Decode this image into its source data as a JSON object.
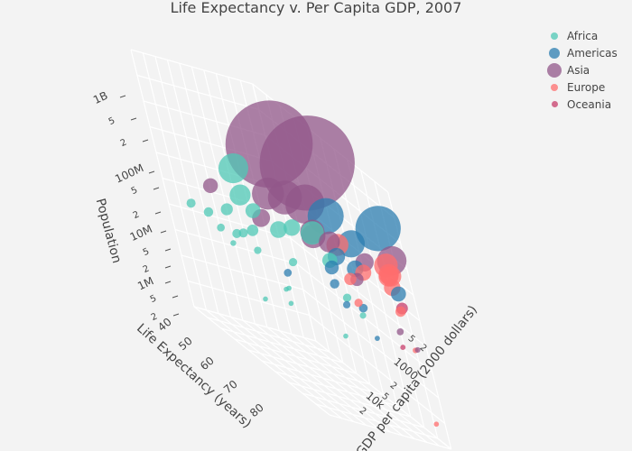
{
  "title": "Life Expectancy v. Per Capita GDP, 2007",
  "legend": [
    {
      "name": "Africa",
      "color": "#4fc8b5"
    },
    {
      "name": "Americas",
      "color": "#2c7db0"
    },
    {
      "name": "Asia",
      "color": "#915789"
    },
    {
      "name": "Europe",
      "color": "#ff6e6e"
    },
    {
      "name": "Oceania",
      "color": "#c73e6b"
    }
  ],
  "chart_data": {
    "type": "scatter",
    "subtype": "scatter3d",
    "title": "Life Expectancy v. Per Capita GDP, 2007",
    "xlabel": "Life Expectancy (years)",
    "ylabel": "GDP per capita (2000 dollars)",
    "zlabel": "Population",
    "x_ticks": [
      "40",
      "50",
      "60",
      "70",
      "80"
    ],
    "y_ticks": [
      "2",
      "5",
      "1000",
      "2",
      "5",
      "10k",
      "2"
    ],
    "z_ticks": [
      "2",
      "5",
      "1M",
      "2",
      "5",
      "10M",
      "2",
      "5",
      "100M",
      "2",
      "5",
      "1B"
    ],
    "xlim": [
      38,
      84
    ],
    "ylim_log10": [
      2.3,
      4.7
    ],
    "zlim_log10": [
      5.2,
      9.3
    ],
    "legend_position": "top-right",
    "series": [
      {
        "name": "Africa",
        "points": [
          [
            42.6,
            350,
            12000000
          ],
          [
            46.5,
            470,
            13000000
          ],
          [
            48.3,
            580,
            9000000
          ],
          [
            49.3,
            860,
            21000000
          ],
          [
            50.4,
            1700,
            1000000
          ],
          [
            51.5,
            1500,
            130000000
          ],
          [
            52.9,
            2000,
            33000000
          ],
          [
            54.1,
            600,
            12000000
          ],
          [
            55.3,
            3200,
            1500000
          ],
          [
            56.0,
            900,
            64000000
          ],
          [
            56.7,
            1000,
            19000000
          ],
          [
            58.4,
            2100,
            3000000
          ],
          [
            59.4,
            3600,
            10000000
          ],
          [
            60.0,
            4800,
            40000000
          ],
          [
            62.0,
            1600,
            4000000
          ],
          [
            64.2,
            1500,
            41000000
          ],
          [
            65.5,
            9600,
            1400000
          ],
          [
            71.3,
            5600,
            33000000
          ],
          [
            72.8,
            7000,
            10000000
          ],
          [
            71.3,
            3300,
            80000000
          ],
          [
            73.0,
            12000,
            6000000
          ],
          [
            52.5,
            1000,
            12000000
          ],
          [
            54.5,
            1300,
            8000000
          ],
          [
            46.4,
            1100,
            5000000
          ]
        ]
      },
      {
        "name": "Americas",
        "points": [
          [
            65.6,
            1200,
            9000000
          ],
          [
            72.2,
            7000,
            190000000
          ],
          [
            78.2,
            7300,
            11000000
          ],
          [
            73.7,
            5700,
            8000000
          ],
          [
            78.6,
            9600,
            4000000
          ],
          [
            72.9,
            4700,
            28000000
          ],
          [
            76.2,
            11000,
            108000000
          ],
          [
            78.2,
            39000,
            300000000
          ],
          [
            75.3,
            11000,
            40000000
          ],
          [
            80.7,
            36000,
            33000000
          ],
          [
            72.4,
            7100,
            44000000
          ],
          [
            70.3,
            6000,
            13000000
          ]
        ]
      },
      {
        "name": "Asia",
        "points": [
          [
            73.0,
            4900,
            1320000000
          ],
          [
            64.7,
            2500,
            1110000000
          ],
          [
            82.6,
            31000,
            127000000
          ],
          [
            70.7,
            3500,
            223000000
          ],
          [
            65.5,
            2600,
            169000000
          ],
          [
            64.1,
            1400,
            150000000
          ],
          [
            71.7,
            3200,
            86000000
          ],
          [
            74.2,
            2400,
            85000000
          ],
          [
            70.6,
            7400,
            65000000
          ],
          [
            43.8,
            970,
            32000000
          ],
          [
            62.1,
            940,
            47000000
          ],
          [
            72.8,
            25000,
            49000000
          ],
          [
            79.4,
            29000,
            7000000
          ],
          [
            80.7,
            47000,
            4500000
          ],
          [
            74.2,
            12000,
            25000000
          ]
        ]
      },
      {
        "name": "Europe",
        "points": [
          [
            79.4,
            32000,
            82000000
          ],
          [
            80.7,
            31000,
            61000000
          ],
          [
            79.4,
            33000,
            60000000
          ],
          [
            80.5,
            28000,
            58000000
          ],
          [
            80.9,
            28000,
            40000000
          ],
          [
            75.6,
            15000,
            38000000
          ],
          [
            72.5,
            8500,
            71000000
          ],
          [
            79.8,
            36000,
            16000000
          ],
          [
            81.8,
            37000,
            4600000
          ],
          [
            80.9,
            47000,
            300000
          ],
          [
            73.0,
            10000,
            22000000
          ],
          [
            74.0,
            10000,
            10000000
          ]
        ]
      },
      {
        "name": "Oceania",
        "points": [
          [
            81.2,
            34000,
            20000000
          ],
          [
            80.2,
            25000,
            4100000
          ]
        ]
      }
    ]
  },
  "axes": {
    "x_title": "Life Expectancy (years)",
    "y_title": "GDP per capita (2000 dollars)",
    "z_title": "Population"
  }
}
